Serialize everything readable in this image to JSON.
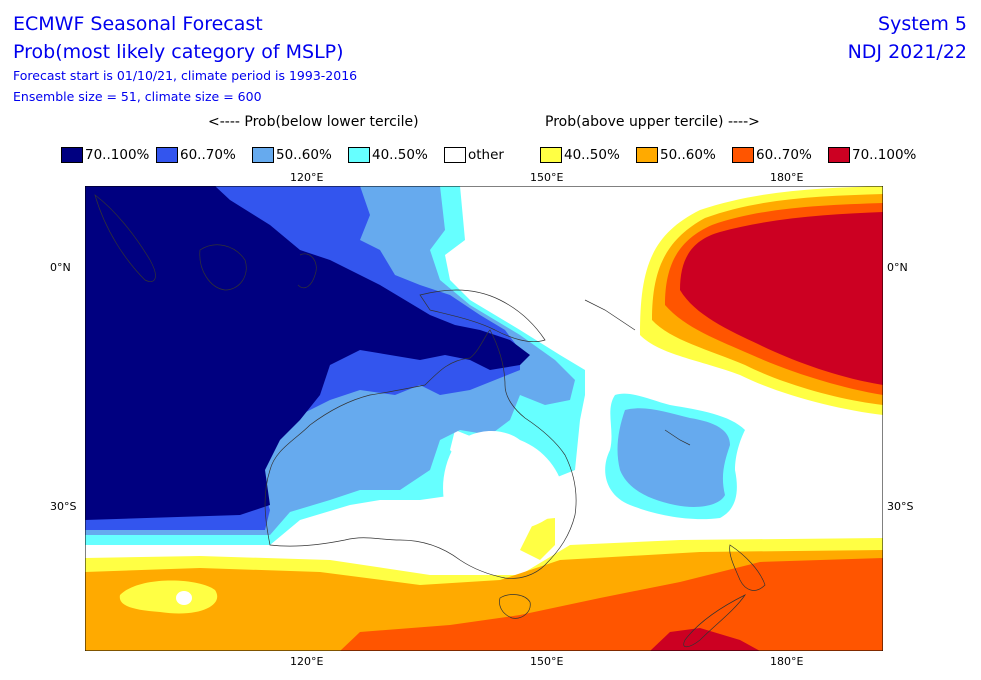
{
  "header": {
    "title_line1": "ECMWF Seasonal Forecast",
    "title_line2": "Prob(most likely category of MSLP)",
    "forecast_start": "Forecast start is 01/10/21, climate period is 1993-2016",
    "ensemble": "Ensemble size = 51, climate size = 600",
    "system": "System 5",
    "period": "NDJ 2021/22"
  },
  "legend": {
    "below_header": "<---- Prob(below lower tercile)",
    "above_header": "Prob(above upper tercile) ---->",
    "items": [
      {
        "label": "70..100%",
        "color": "#000080"
      },
      {
        "label": "60..70%",
        "color": "#3355ee"
      },
      {
        "label": "50..60%",
        "color": "#66aaee"
      },
      {
        "label": "40..50%",
        "color": "#66ffff"
      },
      {
        "label": "other",
        "color": "#ffffff"
      },
      {
        "label": "40..50%",
        "color": "#ffff44"
      },
      {
        "label": "50..60%",
        "color": "#ffaa00"
      },
      {
        "label": "60..70%",
        "color": "#ff5500"
      },
      {
        "label": "70..100%",
        "color": "#cc0022"
      }
    ]
  },
  "axes": {
    "lon_ticks": [
      "120°E",
      "150°E",
      "180°E"
    ],
    "lat_ticks": [
      "0°N",
      "30°S"
    ]
  }
}
